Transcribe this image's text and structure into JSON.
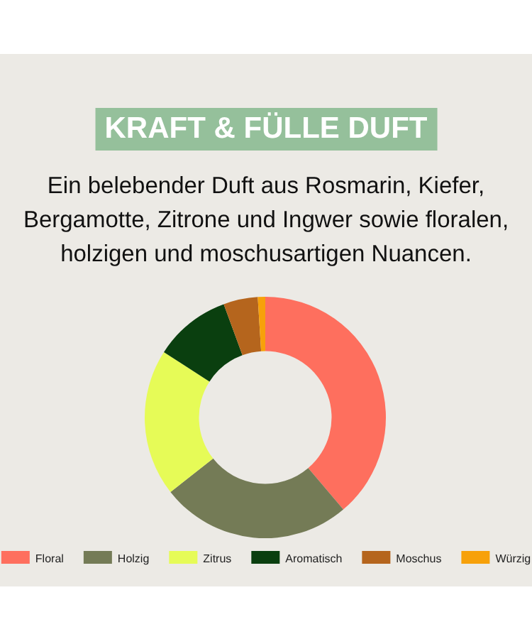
{
  "chart_data": {
    "type": "donut",
    "title": "KRAFT & FÜLLE DUFT",
    "subtitle": "Ein belebender Duft aus Rosmarin, Kiefer, Bergamotte, Zitrone und Ingwer sowie floralen, holzigen und moschusartigen Nuancen.",
    "categories": [
      "Floral",
      "Holzig",
      "Zitrus",
      "Aromatisch",
      "Moschus",
      "Würzig"
    ],
    "values": [
      38.8,
      25.6,
      19.7,
      10.3,
      4.6,
      1
    ],
    "colors": [
      "#fe6f5e",
      "#747b56",
      "#e6fb57",
      "#0a3f0f",
      "#b5651d",
      "#f7a10a"
    ],
    "legend": "bottom"
  }
}
